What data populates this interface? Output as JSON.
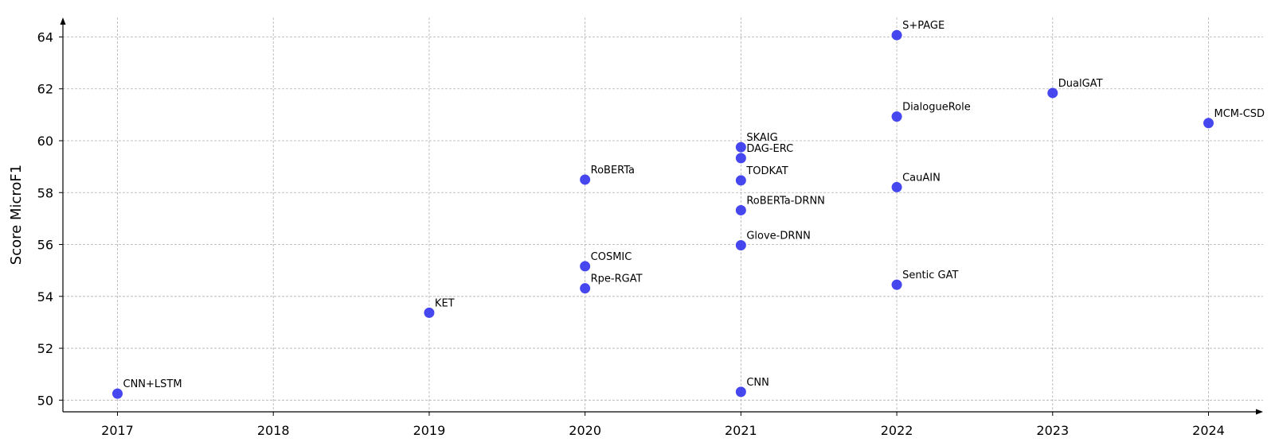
{
  "chart_data": {
    "type": "scatter",
    "title": "",
    "xlabel": "",
    "ylabel": "Score MicroF1",
    "xlim": [
      2016.65,
      2024.35
    ],
    "ylim": [
      49.55,
      64.75
    ],
    "x_ticks": [
      2017,
      2018,
      2019,
      2020,
      2021,
      2022,
      2023,
      2024
    ],
    "y_ticks": [
      50,
      52,
      54,
      56,
      58,
      60,
      62,
      64
    ],
    "grid": true,
    "point_color": "#3333ee",
    "points": [
      {
        "label": "CNN+LSTM",
        "x": 2017,
        "y": 50.25
      },
      {
        "label": "KET",
        "x": 2019,
        "y": 53.37
      },
      {
        "label": "RoBERTa",
        "x": 2020,
        "y": 58.5
      },
      {
        "label": "COSMIC",
        "x": 2020,
        "y": 55.16
      },
      {
        "label": "Rpe-RGAT",
        "x": 2020,
        "y": 54.31
      },
      {
        "label": "SKAIG",
        "x": 2021,
        "y": 59.75
      },
      {
        "label": "DAG-ERC",
        "x": 2021,
        "y": 59.33
      },
      {
        "label": "TODKAT",
        "x": 2021,
        "y": 58.47
      },
      {
        "label": "RoBERTa-DRNN",
        "x": 2021,
        "y": 57.32
      },
      {
        "label": "Glove-DRNN",
        "x": 2021,
        "y": 55.97
      },
      {
        "label": "CNN",
        "x": 2021,
        "y": 50.32
      },
      {
        "label": "S+PAGE",
        "x": 2022,
        "y": 64.07
      },
      {
        "label": "DialogueRole",
        "x": 2022,
        "y": 60.93
      },
      {
        "label": "CauAIN",
        "x": 2022,
        "y": 58.21
      },
      {
        "label": "Sentic GAT",
        "x": 2022,
        "y": 54.45
      },
      {
        "label": "DualGAT",
        "x": 2023,
        "y": 61.84
      },
      {
        "label": "MCM-CSD",
        "x": 2024,
        "y": 60.68
      }
    ]
  }
}
